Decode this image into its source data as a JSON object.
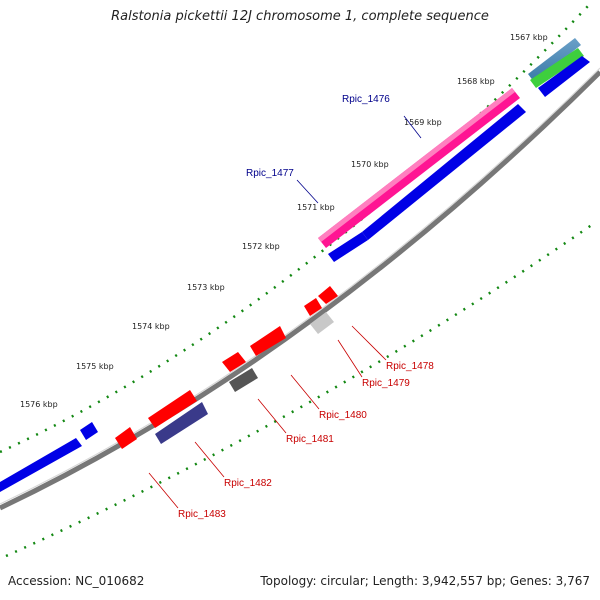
{
  "title": "Ralstonia pickettii 12J chromosome 1, complete sequence",
  "footer": {
    "accession": "Accession: NC_010682",
    "summary": "Topology: circular; Length: 3,942,557 bp; Genes: 3,767"
  },
  "colors": {
    "forward_gene": "#0000e6",
    "reverse_gene": "#ff0000",
    "rna_gene": "#ff1493",
    "tick": "#138813",
    "axis": "#777777",
    "forward_label": "#00008b",
    "reverse_label": "#c80000"
  },
  "scale_labels": [
    "1567 kbp",
    "1568 kbp",
    "1569 kbp",
    "1570 kbp",
    "1571 kbp",
    "1572 kbp",
    "1573 kbp",
    "1574 kbp",
    "1575 kbp",
    "1576 kbp"
  ],
  "gene_labels": {
    "forward": [
      "Rpic_1476",
      "Rpic_1477"
    ],
    "reverse": [
      "Rpic_1478",
      "Rpic_1479",
      "Rpic_1480",
      "Rpic_1481",
      "Rpic_1482",
      "Rpic_1483"
    ]
  }
}
